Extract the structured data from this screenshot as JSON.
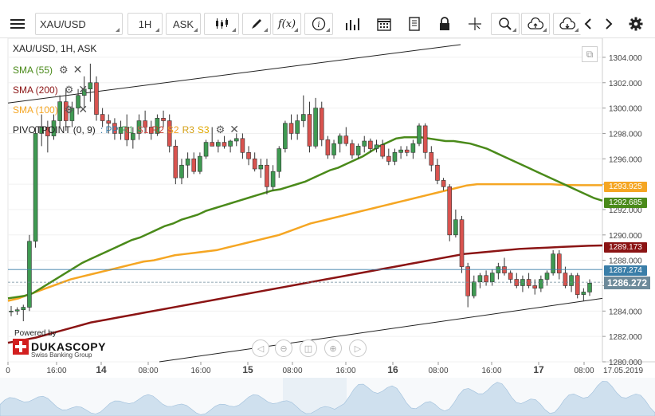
{
  "toolbar": {
    "symbol": "XAU/USD",
    "timeframe": "1H",
    "side": "ASK"
  },
  "legend": {
    "title": "XAU/USD, 1H, ASK",
    "sma55": "SMA (55)",
    "sma200": "SMA (200)",
    "sma100": "SMA (100)",
    "pivot": "PIVOTPOINT (0, 9)",
    "pivot_parts": [
      ": PP",
      "R1",
      "S1",
      "R2",
      "S2",
      "R3",
      "S3"
    ]
  },
  "branding": {
    "powered": "Powered by",
    "brand": "DUKASCOPY",
    "sub": "Swiss Banking Group"
  },
  "colors": {
    "sma55": "#4a8a1a",
    "sma100": "#f5a623",
    "sma200": "#8b1414",
    "up_candle": "#3f9a52",
    "down_candle": "#d9534f",
    "channel": "#222222",
    "last_price": "#6d8a9a",
    "price_line": "#3a7ea8"
  },
  "price_tags": {
    "sma100": "1293.925",
    "sma55": "1292.685",
    "sma200": "1289.173",
    "line": "1287.274",
    "last": "1286.272"
  },
  "chart_data": {
    "type": "candlestick",
    "ylim": [
      1280.0,
      1305.0
    ],
    "y_ticks": [
      "1304.000",
      "1302.000",
      "1300.000",
      "1298.000",
      "1296.000",
      "1294.000",
      "1292.000",
      "1290.000",
      "1288.000",
      "1286.000",
      "1284.000",
      "1282.000",
      "1280.000"
    ],
    "x_ticks": [
      "0",
      "16:00",
      "14",
      "08:00",
      "16:00",
      "15",
      "08:00",
      "16:00",
      "16",
      "08:00",
      "16:00",
      "17",
      "08:00",
      "17.05.2019"
    ],
    "candles": [
      [
        1284.0,
        1284.4,
        1283.6,
        1284.0
      ],
      [
        1284.0,
        1284.3,
        1283.7,
        1284.1
      ],
      [
        1284.1,
        1284.5,
        1283.2,
        1284.3
      ],
      [
        1284.3,
        1290.0,
        1284.0,
        1289.5
      ],
      [
        1289.5,
        1298.5,
        1289.0,
        1298.0
      ],
      [
        1298.0,
        1299.5,
        1297.0,
        1298.5
      ],
      [
        1298.5,
        1299.0,
        1296.5,
        1297.8
      ],
      [
        1297.8,
        1299.5,
        1297.5,
        1299.0
      ],
      [
        1299.0,
        1301.0,
        1298.5,
        1300.5
      ],
      [
        1300.5,
        1301.5,
        1298.2,
        1299.0
      ],
      [
        1299.0,
        1300.5,
        1298.5,
        1300.0
      ],
      [
        1300.0,
        1301.5,
        1299.5,
        1301.0
      ],
      [
        1301.0,
        1302.5,
        1300.0,
        1301.5
      ],
      [
        1301.5,
        1303.5,
        1300.5,
        1302.0
      ],
      [
        1302.0,
        1302.5,
        1299.0,
        1299.5
      ],
      [
        1299.5,
        1300.0,
        1298.5,
        1299.0
      ],
      [
        1299.0,
        1299.5,
        1298.0,
        1298.8
      ],
      [
        1298.8,
        1299.2,
        1297.5,
        1298.0
      ],
      [
        1298.0,
        1299.0,
        1297.5,
        1298.5
      ],
      [
        1298.5,
        1299.5,
        1297.0,
        1297.5
      ],
      [
        1297.5,
        1298.5,
        1296.8,
        1298.0
      ],
      [
        1298.0,
        1299.5,
        1297.5,
        1299.0
      ],
      [
        1299.0,
        1299.8,
        1298.0,
        1298.5
      ],
      [
        1298.5,
        1299.0,
        1297.5,
        1298.0
      ],
      [
        1298.0,
        1299.5,
        1297.8,
        1299.2
      ],
      [
        1299.2,
        1299.8,
        1298.5,
        1299.0
      ],
      [
        1299.0,
        1299.5,
        1296.5,
        1297.0
      ],
      [
        1297.0,
        1297.5,
        1294.0,
        1294.5
      ],
      [
        1294.5,
        1296.0,
        1294.0,
        1295.5
      ],
      [
        1295.5,
        1296.5,
        1294.5,
        1296.0
      ],
      [
        1296.0,
        1296.5,
        1294.8,
        1295.0
      ],
      [
        1295.0,
        1296.5,
        1294.8,
        1296.2
      ],
      [
        1296.2,
        1297.5,
        1296.0,
        1297.3
      ],
      [
        1297.3,
        1298.5,
        1297.0,
        1297.0
      ],
      [
        1297.0,
        1297.5,
        1296.5,
        1297.3
      ],
      [
        1297.3,
        1297.8,
        1296.8,
        1297.0
      ],
      [
        1297.0,
        1297.5,
        1296.5,
        1297.4
      ],
      [
        1297.4,
        1298.0,
        1297.0,
        1297.6
      ],
      [
        1297.6,
        1298.0,
        1296.0,
        1296.5
      ],
      [
        1296.5,
        1297.0,
        1295.5,
        1296.0
      ],
      [
        1296.0,
        1296.5,
        1295.0,
        1295.2
      ],
      [
        1295.2,
        1296.0,
        1294.5,
        1295.5
      ],
      [
        1295.5,
        1296.0,
        1293.2,
        1293.8
      ],
      [
        1293.8,
        1295.5,
        1293.5,
        1295.0
      ],
      [
        1295.0,
        1297.0,
        1294.5,
        1296.8
      ],
      [
        1296.8,
        1299.0,
        1296.5,
        1298.8
      ],
      [
        1298.8,
        1299.5,
        1297.5,
        1298.0
      ],
      [
        1298.0,
        1299.5,
        1297.5,
        1299.0
      ],
      [
        1299.0,
        1301.0,
        1298.5,
        1299.5
      ],
      [
        1299.5,
        1300.5,
        1296.5,
        1297.0
      ],
      [
        1297.0,
        1300.8,
        1296.8,
        1300.0
      ],
      [
        1300.0,
        1300.5,
        1297.0,
        1297.5
      ],
      [
        1297.5,
        1297.8,
        1296.0,
        1296.3
      ],
      [
        1296.3,
        1297.5,
        1296.0,
        1297.2
      ],
      [
        1297.2,
        1298.0,
        1296.5,
        1297.8
      ],
      [
        1297.8,
        1298.5,
        1297.0,
        1297.2
      ],
      [
        1297.2,
        1297.5,
        1296.0,
        1296.3
      ],
      [
        1296.3,
        1297.2,
        1296.0,
        1297.0
      ],
      [
        1297.0,
        1297.8,
        1296.5,
        1297.4
      ],
      [
        1297.4,
        1297.6,
        1296.5,
        1296.8
      ],
      [
        1296.8,
        1297.5,
        1296.5,
        1297.1
      ],
      [
        1297.1,
        1297.5,
        1296.0,
        1296.2
      ],
      [
        1296.2,
        1296.8,
        1295.5,
        1295.8
      ],
      [
        1295.8,
        1296.8,
        1295.5,
        1296.5
      ],
      [
        1296.5,
        1297.0,
        1296.0,
        1296.7
      ],
      [
        1296.7,
        1297.0,
        1296.2,
        1296.5
      ],
      [
        1296.5,
        1297.5,
        1296.0,
        1297.2
      ],
      [
        1297.2,
        1298.8,
        1297.0,
        1298.6
      ],
      [
        1298.6,
        1298.8,
        1296.0,
        1296.5
      ],
      [
        1296.5,
        1297.0,
        1295.0,
        1295.5
      ],
      [
        1295.5,
        1296.0,
        1294.0,
        1294.3
      ],
      [
        1294.3,
        1294.5,
        1293.5,
        1293.8
      ],
      [
        1293.8,
        1294.0,
        1289.5,
        1290.0
      ],
      [
        1290.0,
        1292.0,
        1289.8,
        1291.2
      ],
      [
        1291.2,
        1291.5,
        1287.0,
        1287.5
      ],
      [
        1287.5,
        1287.8,
        1284.3,
        1285.2
      ],
      [
        1285.2,
        1286.8,
        1285.0,
        1286.3
      ],
      [
        1286.3,
        1287.0,
        1285.8,
        1286.8
      ],
      [
        1286.8,
        1287.2,
        1286.0,
        1286.3
      ],
      [
        1286.3,
        1287.3,
        1286.0,
        1287.0
      ],
      [
        1287.0,
        1287.8,
        1286.5,
        1287.5
      ],
      [
        1287.5,
        1288.2,
        1286.8,
        1287.0
      ],
      [
        1287.0,
        1287.2,
        1286.2,
        1286.5
      ],
      [
        1286.5,
        1287.0,
        1285.8,
        1286.0
      ],
      [
        1286.0,
        1286.8,
        1285.5,
        1286.5
      ],
      [
        1286.5,
        1287.0,
        1285.8,
        1286.0
      ],
      [
        1286.0,
        1286.5,
        1285.3,
        1285.8
      ],
      [
        1285.8,
        1286.8,
        1285.5,
        1286.5
      ],
      [
        1286.5,
        1287.2,
        1286.0,
        1287.0
      ],
      [
        1287.0,
        1288.8,
        1286.8,
        1288.5
      ],
      [
        1288.5,
        1288.8,
        1286.5,
        1287.0
      ],
      [
        1287.0,
        1287.5,
        1285.8,
        1286.0
      ],
      [
        1286.0,
        1287.0,
        1285.5,
        1286.8
      ],
      [
        1286.8,
        1287.0,
        1285.0,
        1285.3
      ],
      [
        1285.3,
        1285.8,
        1284.8,
        1285.5
      ],
      [
        1285.5,
        1286.5,
        1285.2,
        1286.2
      ]
    ],
    "sma55": [
      1285.0,
      1285.1,
      1285.2,
      1285.4,
      1285.8,
      1286.2,
      1286.6,
      1287.0,
      1287.4,
      1287.8,
      1288.1,
      1288.4,
      1288.7,
      1289.0,
      1289.3,
      1289.6,
      1289.8,
      1290.1,
      1290.4,
      1290.7,
      1290.9,
      1291.2,
      1291.4,
      1291.6,
      1291.9,
      1292.1,
      1292.3,
      1292.5,
      1292.7,
      1292.9,
      1293.1,
      1293.3,
      1293.5,
      1293.6,
      1293.8,
      1294.0,
      1294.2,
      1294.5,
      1294.8,
      1295.1,
      1295.3,
      1295.6,
      1295.9,
      1296.2,
      1296.6,
      1297.0,
      1297.3,
      1297.6,
      1297.7,
      1297.7,
      1297.7,
      1297.6,
      1297.5,
      1297.4,
      1297.4,
      1297.3,
      1297.2,
      1297.0,
      1296.8,
      1296.5,
      1296.2,
      1295.9,
      1295.6,
      1295.3,
      1295.0,
      1294.7,
      1294.4,
      1294.1,
      1293.8,
      1293.5,
      1293.2,
      1292.9,
      1292.7
    ],
    "sma100": [
      1284.8,
      1285.0,
      1285.3,
      1285.6,
      1285.9,
      1286.2,
      1286.5,
      1286.7,
      1286.9,
      1287.1,
      1287.3,
      1287.5,
      1287.7,
      1287.9,
      1288.0,
      1288.2,
      1288.4,
      1288.5,
      1288.6,
      1288.7,
      1288.8,
      1289.0,
      1289.2,
      1289.4,
      1289.6,
      1289.8,
      1290.0,
      1290.3,
      1290.6,
      1290.9,
      1291.1,
      1291.3,
      1291.5,
      1291.7,
      1291.9,
      1292.1,
      1292.3,
      1292.5,
      1292.7,
      1292.9,
      1293.1,
      1293.3,
      1293.5,
      1293.7,
      1293.9,
      1294.0,
      1294.0,
      1294.0,
      1294.0,
      1294.0,
      1294.0,
      1294.0,
      1294.0,
      1293.95,
      1293.93,
      1293.92,
      1293.92,
      1293.925
    ],
    "sma200": [
      1281.5,
      1281.7,
      1281.9,
      1282.2,
      1282.5,
      1282.8,
      1283.1,
      1283.3,
      1283.5,
      1283.7,
      1283.9,
      1284.1,
      1284.3,
      1284.5,
      1284.7,
      1284.9,
      1285.1,
      1285.3,
      1285.5,
      1285.7,
      1285.9,
      1286.1,
      1286.3,
      1286.5,
      1286.7,
      1286.9,
      1287.1,
      1287.3,
      1287.5,
      1287.7,
      1287.9,
      1288.1,
      1288.3,
      1288.5,
      1288.6,
      1288.7,
      1288.8,
      1288.9,
      1288.95,
      1289.0,
      1289.05,
      1289.1,
      1289.15,
      1289.173
    ]
  }
}
